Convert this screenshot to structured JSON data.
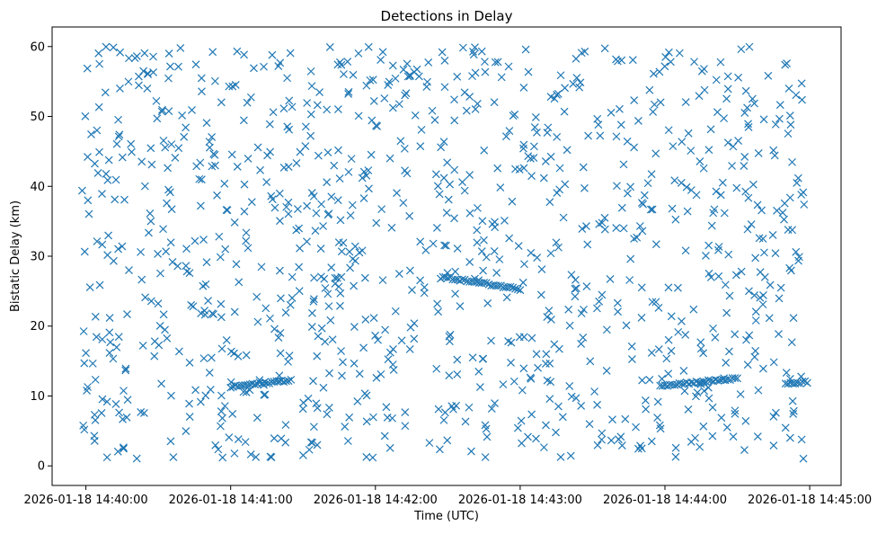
{
  "chart_data": {
    "type": "scatter",
    "title": "Detections in Delay",
    "xlabel": "Time (UTC)",
    "ylabel": "Bistatic Delay (km)",
    "xlim": [
      "2026-01-18 14:39:46",
      "2026-01-18 14:45:13"
    ],
    "ylim": [
      -2.8,
      62.8
    ],
    "x_ticks": [
      "2026-01-18 14:40:00",
      "2026-01-18 14:41:00",
      "2026-01-18 14:42:00",
      "2026-01-18 14:43:00",
      "2026-01-18 14:44:00",
      "2026-01-18 14:45:00"
    ],
    "y_ticks": [
      0,
      10,
      20,
      30,
      40,
      50,
      60
    ],
    "marker": "x",
    "color": "#1f77b4",
    "grid": false,
    "legend": "none",
    "tracks": [
      {
        "start": "2026-01-18 14:41:00",
        "end": "2026-01-18 14:41:25",
        "y_start": 11.3,
        "y_end": 12.3
      },
      {
        "start": "2026-01-18 14:42:28",
        "end": "2026-01-18 14:43:00",
        "y_start": 27.0,
        "y_end": 25.3
      },
      {
        "start": "2026-01-18 14:43:58",
        "end": "2026-01-18 14:44:30",
        "y_start": 11.5,
        "y_end": 12.5
      },
      {
        "start": "2026-01-18 14:44:50",
        "end": "2026-01-18 14:44:59",
        "y_start": 11.7,
        "y_end": 12.0
      }
    ],
    "background_clutter": {
      "x_range": [
        "2026-01-18 14:39:58",
        "2026-01-18 14:44:58"
      ],
      "y_range": [
        1,
        60
      ],
      "count": 1050
    }
  }
}
